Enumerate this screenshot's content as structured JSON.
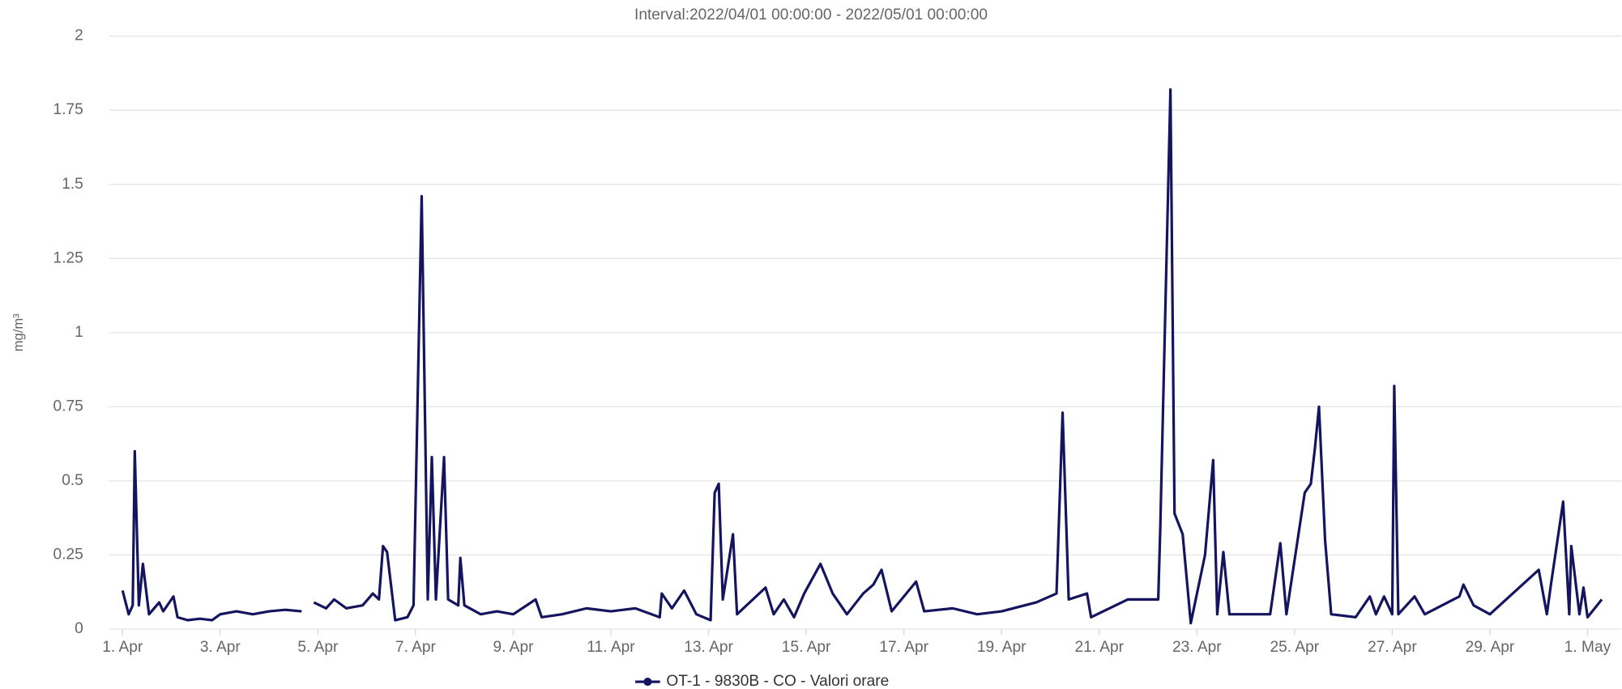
{
  "chart_data": {
    "type": "line",
    "title": "Interval:2022/04/01 00:00:00 - 2022/05/01 00:00:00",
    "y_label": "mg/m³",
    "legend": "bottom",
    "grid": true,
    "ylim": [
      0,
      2
    ],
    "yticks": [
      0,
      0.25,
      0.5,
      0.75,
      1,
      1.25,
      1.5,
      1.75,
      2
    ],
    "xlim": [
      "2022-04-01 00:00",
      "2022-05-01 08:00"
    ],
    "xticks": [
      {
        "value": "2022-04-01 00:00",
        "label": "1. Apr"
      },
      {
        "value": "2022-04-03 00:00",
        "label": "3. Apr"
      },
      {
        "value": "2022-04-05 00:00",
        "label": "5. Apr"
      },
      {
        "value": "2022-04-07 00:00",
        "label": "7. Apr"
      },
      {
        "value": "2022-04-09 00:00",
        "label": "9. Apr"
      },
      {
        "value": "2022-04-11 00:00",
        "label": "11. Apr"
      },
      {
        "value": "2022-04-13 00:00",
        "label": "13. Apr"
      },
      {
        "value": "2022-04-15 00:00",
        "label": "15. Apr"
      },
      {
        "value": "2022-04-17 00:00",
        "label": "17. Apr"
      },
      {
        "value": "2022-04-19 00:00",
        "label": "19. Apr"
      },
      {
        "value": "2022-04-21 00:00",
        "label": "21. Apr"
      },
      {
        "value": "2022-04-23 00:00",
        "label": "23. Apr"
      },
      {
        "value": "2022-04-25 00:00",
        "label": "25. Apr"
      },
      {
        "value": "2022-04-27 00:00",
        "label": "27. Apr"
      },
      {
        "value": "2022-04-29 00:00",
        "label": "29. Apr"
      },
      {
        "value": "2022-05-01 00:00",
        "label": "1. May"
      }
    ],
    "x": [
      "2022-04-01 00:00",
      "2022-04-01 03:00",
      "2022-04-01 05:00",
      "2022-04-01 06:00",
      "2022-04-01 08:00",
      "2022-04-01 10:00",
      "2022-04-01 13:00",
      "2022-04-01 18:00",
      "2022-04-01 20:00",
      "2022-04-02 01:00",
      "2022-04-02 03:00",
      "2022-04-02 08:00",
      "2022-04-02 14:00",
      "2022-04-02 20:00",
      "2022-04-03 00:00",
      "2022-04-03 08:00",
      "2022-04-03 16:00",
      "2022-04-04 00:00",
      "2022-04-04 08:00",
      "2022-04-04 16:00",
      "2022-04-04 20:00",
      "2022-04-04 22:00",
      "2022-04-05 04:00",
      "2022-04-05 08:00",
      "2022-04-05 14:00",
      "2022-04-05 22:00",
      "2022-04-06 03:00",
      "2022-04-06 06:00",
      "2022-04-06 08:00",
      "2022-04-06 10:00",
      "2022-04-06 14:00",
      "2022-04-06 20:00",
      "2022-04-06 23:00",
      "2022-04-07 03:00",
      "2022-04-07 06:00",
      "2022-04-07 08:00",
      "2022-04-07 10:00",
      "2022-04-07 14:00",
      "2022-04-07 16:00",
      "2022-04-07 21:00",
      "2022-04-07 22:00",
      "2022-04-08 00:00",
      "2022-04-08 08:00",
      "2022-04-08 16:00",
      "2022-04-09 00:00",
      "2022-04-09 11:00",
      "2022-04-09 14:00",
      "2022-04-10 00:00",
      "2022-04-10 12:00",
      "2022-04-11 00:00",
      "2022-04-11 12:00",
      "2022-04-12 00:00",
      "2022-04-12 01:00",
      "2022-04-12 06:00",
      "2022-04-12 12:00",
      "2022-04-12 18:00",
      "2022-04-13 01:00",
      "2022-04-13 03:00",
      "2022-04-13 05:00",
      "2022-04-13 07:00",
      "2022-04-13 12:00",
      "2022-04-13 14:00",
      "2022-04-14 04:00",
      "2022-04-14 08:00",
      "2022-04-14 13:00",
      "2022-04-14 18:00",
      "2022-04-14 23:00",
      "2022-04-15 07:00",
      "2022-04-15 13:00",
      "2022-04-15 20:00",
      "2022-04-16 04:00",
      "2022-04-16 09:00",
      "2022-04-16 13:00",
      "2022-04-16 18:00",
      "2022-04-17 06:00",
      "2022-04-17 10:00",
      "2022-04-18 00:00",
      "2022-04-18 12:00",
      "2022-04-19 00:00",
      "2022-04-19 17:00",
      "2022-04-20 03:00",
      "2022-04-20 06:00",
      "2022-04-20 09:00",
      "2022-04-20 18:00",
      "2022-04-20 20:00",
      "2022-04-21 14:00",
      "2022-04-22 05:00",
      "2022-04-22 06:00",
      "2022-04-22 11:00",
      "2022-04-22 13:00",
      "2022-04-22 17:00",
      "2022-04-22 21:00",
      "2022-04-23 04:00",
      "2022-04-23 08:00",
      "2022-04-23 10:00",
      "2022-04-23 13:00",
      "2022-04-23 16:00",
      "2022-04-24 00:00",
      "2022-04-24 12:00",
      "2022-04-24 17:00",
      "2022-04-24 20:00",
      "2022-04-25 05:00",
      "2022-04-25 08:00",
      "2022-04-25 10:00",
      "2022-04-25 12:00",
      "2022-04-25 15:00",
      "2022-04-25 18:00",
      "2022-04-26 06:00",
      "2022-04-26 13:00",
      "2022-04-26 16:00",
      "2022-04-26 20:00",
      "2022-04-27 00:00",
      "2022-04-27 01:00",
      "2022-04-27 03:00",
      "2022-04-27 11:00",
      "2022-04-27 16:00",
      "2022-04-28 09:00",
      "2022-04-28 11:00",
      "2022-04-28 16:00",
      "2022-04-29 00:00",
      "2022-04-30 00:00",
      "2022-04-30 04:00",
      "2022-04-30 06:00",
      "2022-04-30 12:00",
      "2022-04-30 15:00",
      "2022-04-30 16:00",
      "2022-04-30 20:00",
      "2022-04-30 22:00",
      "2022-05-01 00:00",
      "2022-05-01 07:00"
    ],
    "series": [
      {
        "name": "OT-1 - 9830B - CO - Valori orare",
        "color": "#14145f",
        "values": [
          0.13,
          0.05,
          0.08,
          0.6,
          0.08,
          0.22,
          0.05,
          0.09,
          0.06,
          0.11,
          0.04,
          0.03,
          0.035,
          0.03,
          0.05,
          0.06,
          0.05,
          0.06,
          0.065,
          0.06,
          null,
          0.09,
          0.07,
          0.1,
          0.07,
          0.08,
          0.12,
          0.1,
          0.28,
          0.26,
          0.03,
          0.04,
          0.08,
          1.46,
          0.1,
          0.58,
          0.1,
          0.58,
          0.1,
          0.08,
          0.24,
          0.08,
          0.05,
          0.06,
          0.05,
          0.1,
          0.04,
          0.05,
          0.07,
          0.06,
          0.07,
          0.04,
          0.12,
          0.07,
          0.13,
          0.05,
          0.03,
          0.46,
          0.49,
          0.1,
          0.32,
          0.05,
          0.14,
          0.05,
          0.1,
          0.04,
          0.12,
          0.22,
          0.12,
          0.05,
          0.12,
          0.15,
          0.2,
          0.06,
          0.16,
          0.06,
          0.07,
          0.05,
          0.06,
          0.09,
          0.12,
          0.73,
          0.1,
          0.12,
          0.04,
          0.1,
          0.1,
          0.34,
          1.82,
          0.39,
          0.32,
          0.02,
          0.25,
          0.57,
          0.05,
          0.26,
          0.05,
          0.05,
          0.05,
          0.29,
          0.05,
          0.46,
          0.49,
          0.61,
          0.75,
          0.3,
          0.05,
          0.04,
          0.11,
          0.05,
          0.11,
          0.05,
          0.82,
          0.05,
          0.11,
          0.05,
          0.11,
          0.15,
          0.08,
          0.05,
          0.2,
          0.05,
          0.15,
          0.43,
          0.05,
          0.28,
          0.05,
          0.14,
          0.04,
          0.1
        ]
      }
    ]
  }
}
